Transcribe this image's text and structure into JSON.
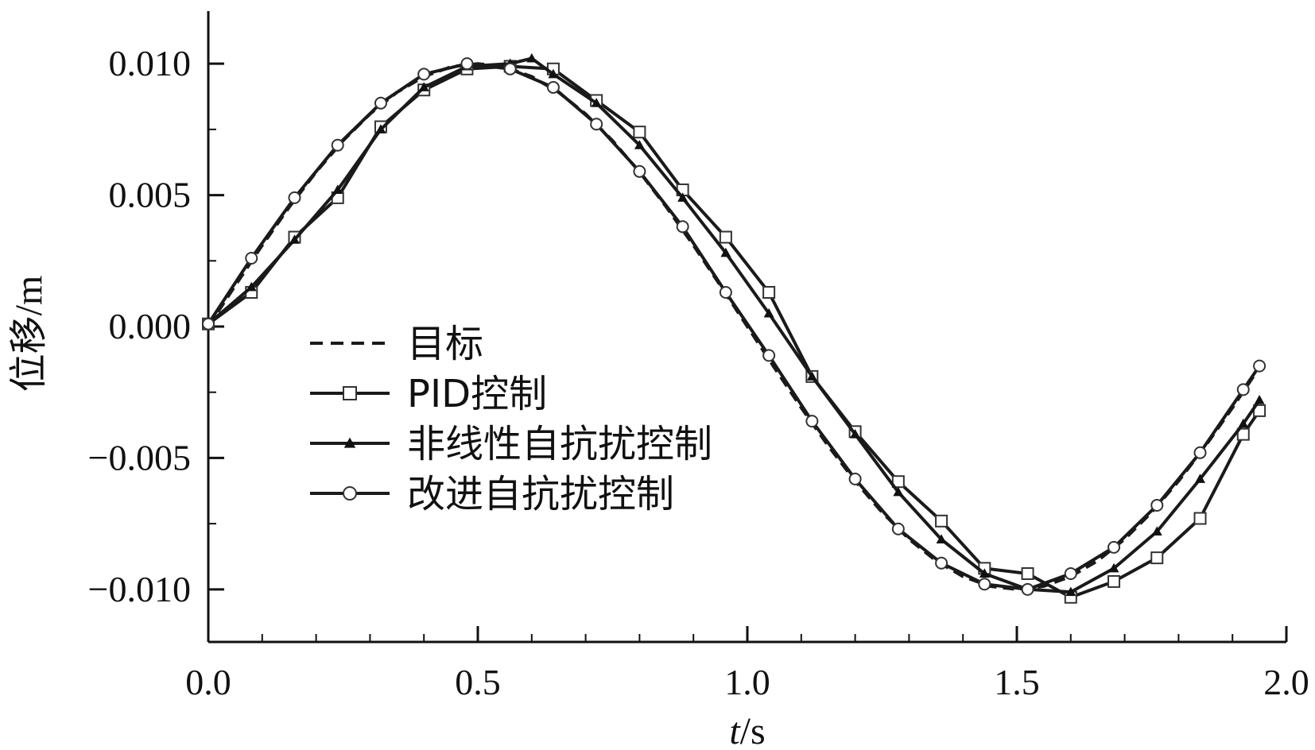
{
  "chart_data": {
    "type": "line",
    "xlabel_italic": "t",
    "xlabel_unit": "/s",
    "ylabel": "位移/m",
    "xlim": [
      0.0,
      2.0
    ],
    "ylim": [
      -0.012,
      0.012
    ],
    "x_ticks": [
      0.0,
      0.5,
      1.0,
      1.5,
      2.0
    ],
    "x_tick_labels": [
      "0.0",
      "0.5",
      "1.0",
      "1.5",
      "2.0"
    ],
    "y_ticks": [
      0.01,
      0.005,
      0.0,
      -0.005,
      -0.01
    ],
    "y_tick_labels": [
      "0.010",
      "0.005",
      "0.000",
      "−0.005",
      "−0.010"
    ],
    "grid": false,
    "legend_position": "left-center",
    "series": [
      {
        "name": "目标",
        "style": "dashed",
        "marker": "none",
        "x": [
          0.0,
          0.05,
          0.1,
          0.15,
          0.2,
          0.25,
          0.3,
          0.35,
          0.4,
          0.45,
          0.5,
          0.55,
          0.6,
          0.65,
          0.7,
          0.75,
          0.8,
          0.85,
          0.9,
          0.95,
          1.0,
          1.05,
          1.1,
          1.15,
          1.2,
          1.25,
          1.3,
          1.35,
          1.4,
          1.45,
          1.5,
          1.55,
          1.6,
          1.65,
          1.7,
          1.75,
          1.8,
          1.85,
          1.9,
          1.95
        ],
        "y": [
          0.0,
          0.00156,
          0.00309,
          0.00454,
          0.00588,
          0.00707,
          0.00809,
          0.00891,
          0.00951,
          0.00988,
          0.01,
          0.00988,
          0.00951,
          0.00891,
          0.00809,
          0.00707,
          0.00588,
          0.00454,
          0.00309,
          0.00156,
          0.0,
          -0.00156,
          -0.00309,
          -0.00454,
          -0.00588,
          -0.00707,
          -0.00809,
          -0.00891,
          -0.00951,
          -0.00988,
          -0.01,
          -0.00988,
          -0.00951,
          -0.00891,
          -0.00809,
          -0.00707,
          -0.00588,
          -0.00454,
          -0.00309,
          -0.00156
        ]
      },
      {
        "name": "PID控制",
        "style": "solid",
        "marker": "square",
        "x": [
          0.0,
          0.08,
          0.16,
          0.24,
          0.32,
          0.4,
          0.48,
          0.56,
          0.64,
          0.72,
          0.8,
          0.88,
          0.96,
          1.04,
          1.12,
          1.2,
          1.28,
          1.36,
          1.44,
          1.52,
          1.6,
          1.68,
          1.76,
          1.84,
          1.92,
          1.95
        ],
        "y": [
          0.0001,
          0.0013,
          0.0034,
          0.0049,
          0.0076,
          0.009,
          0.0098,
          0.0099,
          0.0098,
          0.0086,
          0.0074,
          0.0052,
          0.0034,
          0.0013,
          -0.0019,
          -0.004,
          -0.0059,
          -0.0074,
          -0.0092,
          -0.0094,
          -0.0103,
          -0.0097,
          -0.0088,
          -0.0073,
          -0.0041,
          -0.0032
        ]
      },
      {
        "name": "非线性自抗扰控制",
        "style": "solid",
        "marker": "triangle",
        "x": [
          0.0,
          0.08,
          0.16,
          0.24,
          0.32,
          0.4,
          0.48,
          0.56,
          0.6,
          0.64,
          0.72,
          0.8,
          0.88,
          0.96,
          1.04,
          1.12,
          1.2,
          1.28,
          1.36,
          1.44,
          1.52,
          1.6,
          1.68,
          1.76,
          1.84,
          1.92,
          1.95
        ],
        "y": [
          0.0001,
          0.0015,
          0.0033,
          0.0052,
          0.0075,
          0.0091,
          0.0099,
          0.01,
          0.0102,
          0.0096,
          0.0085,
          0.0069,
          0.0049,
          0.0028,
          0.0005,
          -0.0019,
          -0.0041,
          -0.0063,
          -0.0081,
          -0.0094,
          -0.01,
          -0.0101,
          -0.0092,
          -0.0078,
          -0.0058,
          -0.0037,
          -0.0028
        ]
      },
      {
        "name": "改进自抗扰控制",
        "style": "solid",
        "marker": "circle",
        "x": [
          0.0,
          0.08,
          0.16,
          0.24,
          0.32,
          0.4,
          0.48,
          0.56,
          0.64,
          0.72,
          0.8,
          0.88,
          0.96,
          1.04,
          1.12,
          1.2,
          1.28,
          1.36,
          1.44,
          1.52,
          1.6,
          1.68,
          1.76,
          1.84,
          1.92,
          1.95
        ],
        "y": [
          0.0001,
          0.0026,
          0.0049,
          0.0069,
          0.0085,
          0.0096,
          0.01,
          0.0098,
          0.0091,
          0.0077,
          0.0059,
          0.0038,
          0.0013,
          -0.0011,
          -0.0036,
          -0.0058,
          -0.0077,
          -0.009,
          -0.0098,
          -0.01,
          -0.0094,
          -0.0084,
          -0.0068,
          -0.0048,
          -0.0024,
          -0.0015
        ]
      }
    ]
  }
}
